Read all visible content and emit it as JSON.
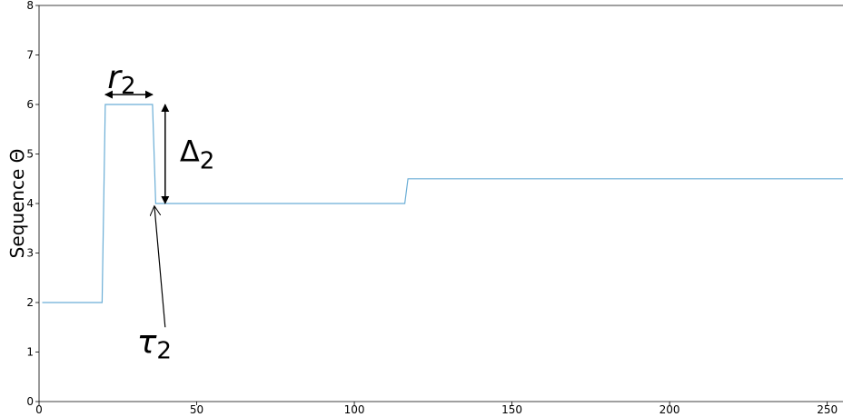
{
  "chart_data": {
    "type": "line",
    "title": "",
    "xlabel": "",
    "ylabel": "Sequence Θ",
    "xlim": [
      0,
      255
    ],
    "ylim": [
      0,
      8
    ],
    "x_ticks": [
      0,
      50,
      100,
      150,
      200,
      250
    ],
    "y_ticks": [
      0,
      1,
      2,
      3,
      4,
      5,
      6,
      7,
      8
    ],
    "grid": false,
    "line_color": "#6baed6",
    "series": [
      {
        "x": [
          1,
          20,
          21,
          36,
          37,
          116,
          117,
          255
        ],
        "y": [
          2,
          2,
          6,
          6,
          4,
          4,
          4.5,
          4.5
        ]
      }
    ],
    "annotations": {
      "r": {
        "symbol": "r",
        "subscript": "2",
        "x_start": 21,
        "x_end": 36,
        "y": 6.2
      },
      "delta": {
        "symbol": "Δ",
        "subscript": "2",
        "x": 40,
        "y_start": 6,
        "y_end": 4
      },
      "tau": {
        "symbol": "τ",
        "subscript": "2",
        "arrow_tip": [
          36,
          3.95
        ],
        "arrow_tail": [
          40,
          1.5
        ]
      }
    }
  }
}
